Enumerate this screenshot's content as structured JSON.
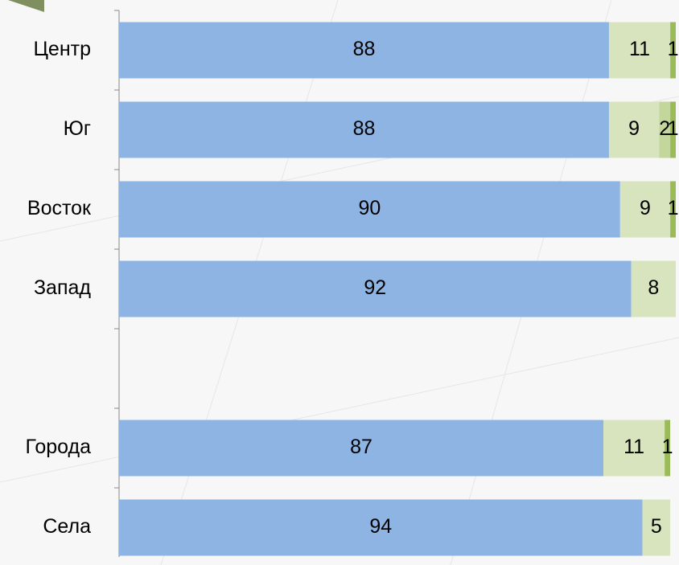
{
  "chart_data": {
    "type": "stacked-bar-horizontal",
    "categories": [
      "Центр",
      "Юг",
      "Восток",
      "Запад",
      null,
      "Города",
      "Села"
    ],
    "xlim": [
      0,
      100
    ],
    "series": [
      {
        "color": "#8eb4e3",
        "values": [
          88,
          88,
          90,
          92,
          null,
          87,
          94
        ]
      },
      {
        "color": "#d7e4bd",
        "values": [
          11,
          9,
          9,
          8,
          null,
          11,
          5
        ]
      },
      {
        "color": "#c3d69b",
        "values": [
          null,
          2,
          null,
          null,
          null,
          null,
          null
        ]
      },
      {
        "color": "#9bbb59",
        "values": [
          1,
          1,
          1,
          null,
          null,
          1,
          null
        ]
      }
    ]
  }
}
